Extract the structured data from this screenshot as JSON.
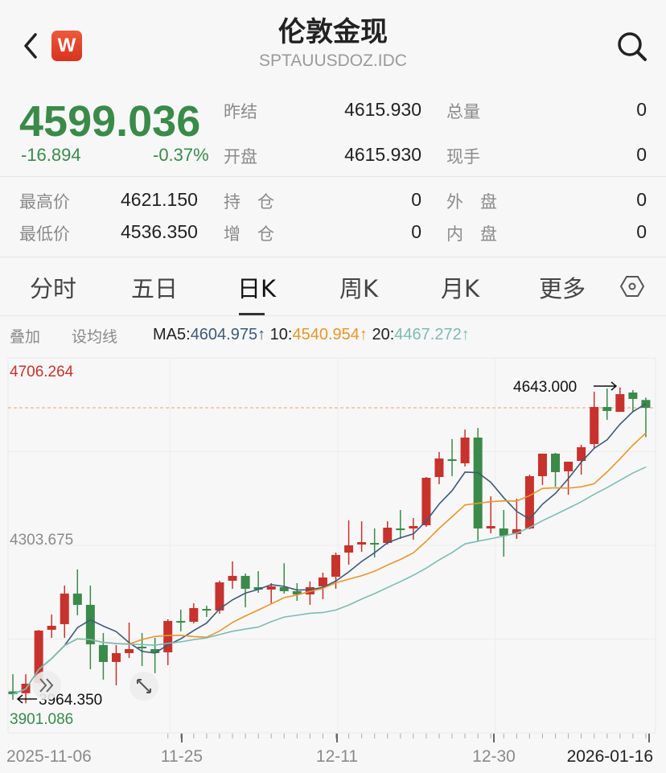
{
  "header": {
    "title": "伦敦金现",
    "code": "SPTAUUSDOZ.IDC",
    "logo_letter": "W",
    "back_icon": "chevron-left",
    "search_icon": "search"
  },
  "quote": {
    "price": "4599.036",
    "change": "-16.894",
    "change_pct": "-0.37%",
    "fields": [
      {
        "label": "昨结",
        "value": "4615.930"
      },
      {
        "label": "总量",
        "value": "0"
      },
      {
        "label": "开盘",
        "value": "4615.930"
      },
      {
        "label": "现手",
        "value": "0"
      },
      {
        "label": "最高价",
        "value": "4621.150"
      },
      {
        "label": "持　仓",
        "value": "0"
      },
      {
        "label": "外　盘",
        "value": "0"
      },
      {
        "label": "最低价",
        "value": "4536.350"
      },
      {
        "label": "增　仓",
        "value": "0"
      },
      {
        "label": "内　盘",
        "value": "0"
      }
    ]
  },
  "tabs": [
    {
      "label": "分时"
    },
    {
      "label": "五日"
    },
    {
      "label": "日K",
      "active": true
    },
    {
      "label": "周K"
    },
    {
      "label": "月K"
    },
    {
      "label": "更多"
    }
  ],
  "settings_icon": "hexagon-settings",
  "indicator_bar": {
    "overlay": "叠加",
    "set_ma": "设均线",
    "ma5_label": "MA5:",
    "ma5": "4604.975↑",
    "ma10_label": "10:",
    "ma10": "4540.954↑",
    "ma20_label": "20:",
    "ma20": "4467.272↑"
  },
  "colors": {
    "up": "#c8322d",
    "down": "#3a8a4a",
    "ma5": "#3d5a78",
    "ma10": "#e8962e",
    "ma20": "#7cbcb4"
  },
  "chart_data": {
    "type": "candlestick",
    "ylim": [
      3901.086,
      4706.264
    ],
    "y_labels": {
      "max": "4706.264",
      "mid": "4303.675",
      "min": "3901.086"
    },
    "annotations": {
      "high": "4643.000",
      "low": "3964.350"
    },
    "current_price": 4599.036,
    "x_labels": [
      "2025-11-06",
      "11-25",
      "12-11",
      "12-30",
      "2026-01-16"
    ],
    "candles_ohlc": [
      [
        3990,
        4027,
        3972,
        3984
      ],
      [
        3986,
        4027,
        3964.35,
        4006.5
      ],
      [
        4008,
        4122,
        4006,
        4120.6
      ],
      [
        4122.3,
        4155.1,
        4105,
        4130.9
      ],
      [
        4134.4,
        4217.3,
        4105,
        4200.1
      ],
      [
        4200.1,
        4251.9,
        4153.4,
        4175.9
      ],
      [
        4175.9,
        4217.3,
        4037.6,
        4091.2
      ],
      [
        4089.5,
        4115.4,
        4015.2,
        4053.2
      ],
      [
        4053.2,
        4089.5,
        4003.1,
        4072.2
      ],
      [
        4072.2,
        4137.8,
        4061.8,
        4080.8
      ],
      [
        4086,
        4115.4,
        4044.5,
        4082.5
      ],
      [
        4080.8,
        4105,
        4029,
        4072.2
      ],
      [
        4073.9,
        4144.8,
        4046.3,
        4141.3
      ],
      [
        4141.3,
        4165.5,
        4118.9,
        4137.8
      ],
      [
        4139.6,
        4179.3,
        4136.1,
        4168.9
      ],
      [
        4167.2,
        4174.1,
        4150,
        4163.8
      ],
      [
        4163.8,
        4227.7,
        4156.9,
        4224.2
      ],
      [
        4227.7,
        4269.2,
        4210.4,
        4238.1
      ],
      [
        4238.1,
        4243.3,
        4170.7,
        4210.4
      ],
      [
        4213.9,
        4248.4,
        4201.8,
        4208.7
      ],
      [
        4208.7,
        4222.5,
        4179.3,
        4215.6
      ],
      [
        4213.9,
        4265.3,
        4200.1,
        4205.2
      ],
      [
        4205.2,
        4222.5,
        4184.5,
        4198.3
      ],
      [
        4198.3,
        4226,
        4175.9,
        4213.9
      ],
      [
        4215.6,
        4245,
        4188,
        4234.6
      ],
      [
        4236.3,
        4288.2,
        4210.4,
        4283
      ],
      [
        4288.2,
        4357.3,
        4262.3,
        4303.7
      ],
      [
        4305.5,
        4355.5,
        4289.9,
        4310.6
      ],
      [
        4308.9,
        4340,
        4277.8,
        4307.2
      ],
      [
        4308.9,
        4355.5,
        4305.5,
        4341.7
      ],
      [
        4340,
        4379.7,
        4317.5,
        4336.5
      ],
      [
        4340,
        4362.5,
        4315.8,
        4345.2
      ],
      [
        4346.9,
        4450.5,
        4343.5,
        4448.8
      ],
      [
        4450.5,
        4504.1,
        4435,
        4490.3
      ],
      [
        4488.6,
        4531.8,
        4452.3,
        4485.1
      ],
      [
        4479.9,
        4552.5,
        4473,
        4535.2
      ],
      [
        4535.2,
        4556,
        4312.4,
        4340
      ],
      [
        4340,
        4409.1,
        4329.6,
        4345.2
      ],
      [
        4340,
        4379.7,
        4279.5,
        4324.4
      ],
      [
        4327.9,
        4403.9,
        4317.5,
        4338.3
      ],
      [
        4340,
        4455.7,
        4338.3,
        4452.3
      ],
      [
        4452.3,
        4500.7,
        4433.3,
        4500.7
      ],
      [
        4500.7,
        4502.4,
        4429.8,
        4461
      ],
      [
        4462.7,
        4483.4,
        4412.6,
        4483.4
      ],
      [
        4485.1,
        4519.7,
        4455.7,
        4514.5
      ],
      [
        4521.4,
        4633.7,
        4511,
        4600.9
      ],
      [
        4600.9,
        4640.6,
        4573.2,
        4592.3
      ],
      [
        4590.5,
        4643,
        4590.5,
        4628.5
      ],
      [
        4632,
        4637.2,
        4590.5,
        4618.2
      ],
      [
        4615.93,
        4621.15,
        4536.35,
        4599.036
      ]
    ],
    "ma_periods": [
      5,
      10,
      20
    ],
    "grid": true
  }
}
